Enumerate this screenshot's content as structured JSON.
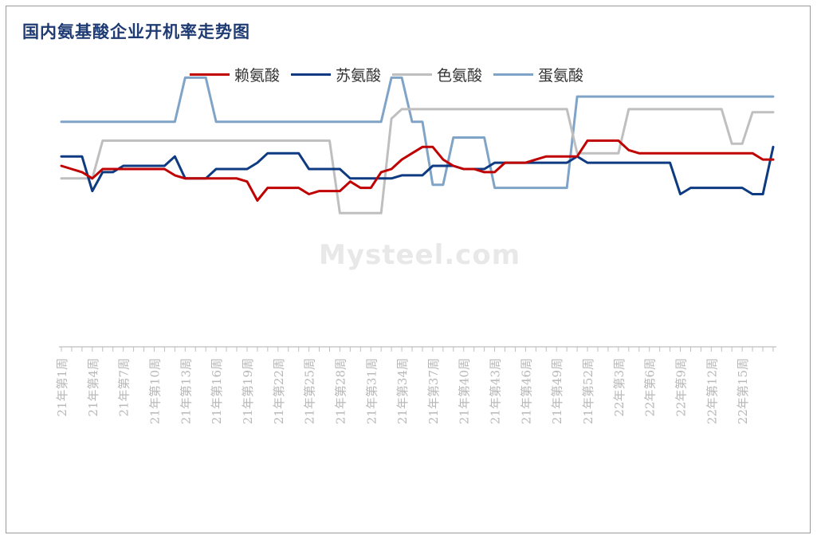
{
  "title": "国内氨基酸企业开机率走势图",
  "watermark": "Mysteel.com",
  "chart_data": {
    "type": "line",
    "title": "国内氨基酸企业开机率走势图",
    "xlabel": "",
    "ylabel": "",
    "ylim": [
      0,
      100
    ],
    "grid": false,
    "legend_position": "top",
    "tick_labels": [
      "21年第1周",
      "21年第4周",
      "21年第7周",
      "21年第10周",
      "21年第13周",
      "21年第16周",
      "21年第19周",
      "21年第22周",
      "21年第25周",
      "21年第28周",
      "21年第31周",
      "21年第34周",
      "21年第37周",
      "21年第40周",
      "21年第43周",
      "21年第46周",
      "21年第49周",
      "21年第52周",
      "22年第3周",
      "22年第6周",
      "22年第9周",
      "22年第12周",
      "22年第15周"
    ],
    "series": [
      {
        "name": "赖氨酸",
        "color": "#c00000",
        "x": [
          0,
          1,
          2,
          3,
          4,
          5,
          6,
          7,
          8,
          9,
          10,
          11,
          12,
          13,
          14,
          15,
          16,
          17,
          18,
          19,
          20,
          21,
          22,
          23,
          24,
          25,
          26,
          27,
          28,
          29,
          30,
          31,
          32,
          33,
          34,
          35,
          36,
          37,
          38,
          39,
          40,
          41,
          42,
          43,
          44,
          45,
          46,
          47,
          48,
          49,
          50,
          51,
          52,
          53,
          54,
          55,
          56,
          57,
          58,
          59,
          60,
          61,
          62,
          63,
          64,
          65,
          66,
          67,
          68,
          69
        ],
        "values": [
          60,
          59,
          58,
          56,
          59,
          59,
          59,
          59,
          59,
          59,
          59,
          57,
          56,
          56,
          56,
          56,
          56,
          56,
          55,
          49,
          53,
          53,
          53,
          53,
          51,
          52,
          52,
          52,
          55,
          53,
          53,
          58,
          59,
          62,
          64,
          66,
          66,
          62,
          60,
          59,
          59,
          58,
          58,
          61,
          61,
          61,
          62,
          63,
          63,
          63,
          63,
          68,
          68,
          68,
          68,
          65,
          64,
          64,
          64,
          64,
          64,
          64,
          64,
          64,
          64,
          64,
          64,
          64,
          62,
          62
        ],
        "label_points": "weekly"
      },
      {
        "name": "苏氨酸",
        "color": "#0d3a80",
        "x": [
          0,
          1,
          2,
          3,
          4,
          5,
          6,
          7,
          8,
          9,
          10,
          11,
          12,
          13,
          14,
          15,
          16,
          17,
          18,
          19,
          20,
          21,
          22,
          23,
          24,
          25,
          26,
          27,
          28,
          29,
          30,
          31,
          32,
          33,
          34,
          35,
          36,
          37,
          38,
          39,
          40,
          41,
          42,
          43,
          44,
          45,
          46,
          47,
          48,
          49,
          50,
          51,
          52,
          53,
          54,
          55,
          56,
          57,
          58,
          59,
          60,
          61,
          62,
          63,
          64,
          65,
          66,
          67,
          68,
          69
        ],
        "values": [
          63,
          63,
          63,
          52,
          58,
          58,
          60,
          60,
          60,
          60,
          60,
          63,
          56,
          56,
          56,
          59,
          59,
          59,
          59,
          61,
          64,
          64,
          64,
          64,
          59,
          59,
          59,
          59,
          56,
          56,
          56,
          56,
          56,
          57,
          57,
          57,
          60,
          60,
          60,
          59,
          59,
          59,
          61,
          61,
          61,
          61,
          61,
          61,
          61,
          61,
          63,
          61,
          61,
          61,
          61,
          61,
          61,
          61,
          61,
          61,
          51,
          53,
          53,
          53,
          53,
          53,
          53,
          51,
          51,
          66
        ],
        "label_points": "weekly"
      },
      {
        "name": "色氨酸",
        "color": "#bfbfbf",
        "x": [
          0,
          1,
          2,
          3,
          4,
          5,
          6,
          7,
          8,
          9,
          10,
          11,
          12,
          13,
          14,
          15,
          16,
          17,
          18,
          19,
          20,
          21,
          22,
          23,
          24,
          25,
          26,
          27,
          28,
          29,
          30,
          31,
          32,
          33,
          34,
          35,
          36,
          37,
          38,
          39,
          40,
          41,
          42,
          43,
          44,
          45,
          46,
          47,
          48,
          49,
          50,
          51,
          52,
          53,
          54,
          55,
          56,
          57,
          58,
          59,
          60,
          61,
          62,
          63,
          64,
          65,
          66,
          67,
          68,
          69
        ],
        "values": [
          56,
          56,
          56,
          56,
          68,
          68,
          68,
          68,
          68,
          68,
          68,
          68,
          68,
          68,
          68,
          68,
          68,
          68,
          68,
          68,
          68,
          68,
          68,
          68,
          68,
          68,
          68,
          45,
          45,
          45,
          45,
          45,
          75,
          78,
          78,
          78,
          78,
          78,
          78,
          78,
          78,
          78,
          78,
          78,
          78,
          78,
          78,
          78,
          78,
          78,
          64,
          64,
          64,
          64,
          64,
          78,
          78,
          78,
          78,
          78,
          78,
          78,
          78,
          78,
          78,
          67,
          67,
          77,
          77,
          77
        ],
        "label_points": "weekly"
      },
      {
        "name": "蛋氨酸",
        "color": "#7fa4c8",
        "x": [
          0,
          1,
          2,
          3,
          4,
          5,
          6,
          7,
          8,
          9,
          10,
          11,
          12,
          13,
          14,
          15,
          16,
          17,
          18,
          19,
          20,
          21,
          22,
          23,
          24,
          25,
          26,
          27,
          28,
          29,
          30,
          31,
          32,
          33,
          34,
          35,
          36,
          37,
          38,
          39,
          40,
          41,
          42,
          43,
          44,
          45,
          46,
          47,
          48,
          49,
          50,
          51,
          52,
          53,
          54,
          55,
          56,
          57,
          58,
          59,
          60,
          61,
          62,
          63,
          64,
          65,
          66,
          67,
          68,
          69
        ],
        "values": [
          74,
          74,
          74,
          74,
          74,
          74,
          74,
          74,
          74,
          74,
          74,
          74,
          88,
          88,
          88,
          74,
          74,
          74,
          74,
          74,
          74,
          74,
          74,
          74,
          74,
          74,
          74,
          74,
          74,
          74,
          74,
          74,
          88,
          88,
          74,
          74,
          54,
          54,
          69,
          69,
          69,
          69,
          53,
          53,
          53,
          53,
          53,
          53,
          53,
          53,
          82,
          82,
          82,
          82,
          82,
          82,
          82,
          82,
          82,
          82,
          82,
          82,
          82,
          82,
          82,
          82,
          82,
          82,
          82,
          82
        ],
        "label_points": "weekly"
      }
    ]
  }
}
